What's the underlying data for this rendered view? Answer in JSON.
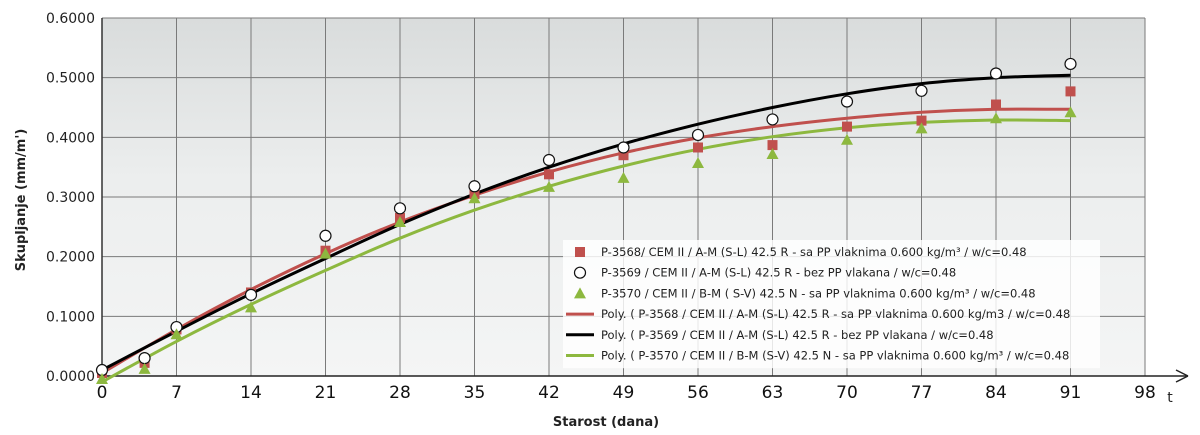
{
  "chart_data": {
    "type": "scatter",
    "title": "",
    "xlabel": "Starost (dana)",
    "ylabel": "Skupljanje (mm/m')",
    "x_unit": "t",
    "xlim": [
      0,
      98
    ],
    "ylim": [
      0,
      0.6
    ],
    "x_ticks": [
      "0",
      "7",
      "14",
      "21",
      "28",
      "35",
      "42",
      "49",
      "56",
      "63",
      "70",
      "77",
      "84",
      "91",
      "98"
    ],
    "y_ticks": [
      "0.0000",
      "0.1000",
      "0.2000",
      "0.3000",
      "0.4000",
      "0.5000",
      "0.6000"
    ],
    "grid": true,
    "legend_position": "bottom-right",
    "series": [
      {
        "name": "P-3568/ CEM II / A-M (S-L) 42.5 R - sa PP vlaknima 0.600 kg/m³ / w/c=0.48",
        "marker": "square",
        "color": "#c0504d",
        "x": [
          0,
          4,
          7,
          14,
          21,
          28,
          35,
          42,
          49,
          56,
          63,
          70,
          77,
          84,
          91
        ],
        "y": [
          0.005,
          0.022,
          0.078,
          0.14,
          0.21,
          0.265,
          0.305,
          0.338,
          0.37,
          0.383,
          0.387,
          0.418,
          0.428,
          0.455,
          0.477
        ]
      },
      {
        "name": "P-3569 / CEM II / A-M (S-L) 42.5 R - bez PP vlakana / w/c=0.48",
        "marker": "circle",
        "color": "#000000",
        "x": [
          0,
          4,
          7,
          14,
          21,
          28,
          35,
          42,
          49,
          56,
          63,
          70,
          77,
          84,
          91
        ],
        "y": [
          0.01,
          0.03,
          0.082,
          0.136,
          0.235,
          0.281,
          0.318,
          0.362,
          0.383,
          0.404,
          0.43,
          0.46,
          0.478,
          0.507,
          0.523
        ]
      },
      {
        "name": "P-3570 / CEM II / B-M ( S-V) 42.5 N - sa PP vlaknima 0.600 kg/m³ / w/c=0.48",
        "marker": "triangle",
        "color": "#8db83f",
        "x": [
          0,
          4,
          7,
          14,
          21,
          28,
          35,
          42,
          49,
          56,
          63,
          70,
          77,
          84,
          91
        ],
        "y": [
          -0.005,
          0.012,
          0.07,
          0.115,
          0.205,
          0.258,
          0.298,
          0.317,
          0.332,
          0.357,
          0.372,
          0.396,
          0.415,
          0.432,
          0.442
        ]
      },
      {
        "name": "Poly. ( P-3568 / CEM II / A-M (S-L) 42.5 R - sa PP vlaknima 0.600 kg/m3 / w/c=0.48",
        "line": "polynomial",
        "color": "#c0504d",
        "x": [
          0,
          7,
          14,
          21,
          28,
          35,
          42,
          49,
          56,
          63,
          70,
          77,
          84,
          91
        ],
        "y": [
          0.005,
          0.078,
          0.145,
          0.205,
          0.258,
          0.303,
          0.342,
          0.374,
          0.399,
          0.418,
          0.432,
          0.442,
          0.447,
          0.447
        ]
      },
      {
        "name": "Poly. ( P-3569 / CEM II / A-M (S-L) 42.5 R - bez PP vlakana  / w/c=0.48",
        "line": "polynomial",
        "color": "#000000",
        "x": [
          0,
          7,
          14,
          21,
          28,
          35,
          42,
          49,
          56,
          63,
          70,
          77,
          84,
          91
        ],
        "y": [
          0.01,
          0.075,
          0.138,
          0.197,
          0.254,
          0.305,
          0.35,
          0.389,
          0.422,
          0.45,
          0.473,
          0.49,
          0.5,
          0.504
        ]
      },
      {
        "name": "Poly. ( P-3570 / CEM II / B-M (S-V) 42.5 N - sa PP vlaknima 0.600 kg/m³ / w/c=0.48",
        "line": "polynomial",
        "color": "#8db83f",
        "x": [
          0,
          7,
          14,
          21,
          28,
          35,
          42,
          49,
          56,
          63,
          70,
          77,
          84,
          91
        ],
        "y": [
          -0.01,
          0.058,
          0.12,
          0.177,
          0.231,
          0.278,
          0.318,
          0.352,
          0.38,
          0.401,
          0.416,
          0.425,
          0.429,
          0.428
        ]
      }
    ]
  }
}
